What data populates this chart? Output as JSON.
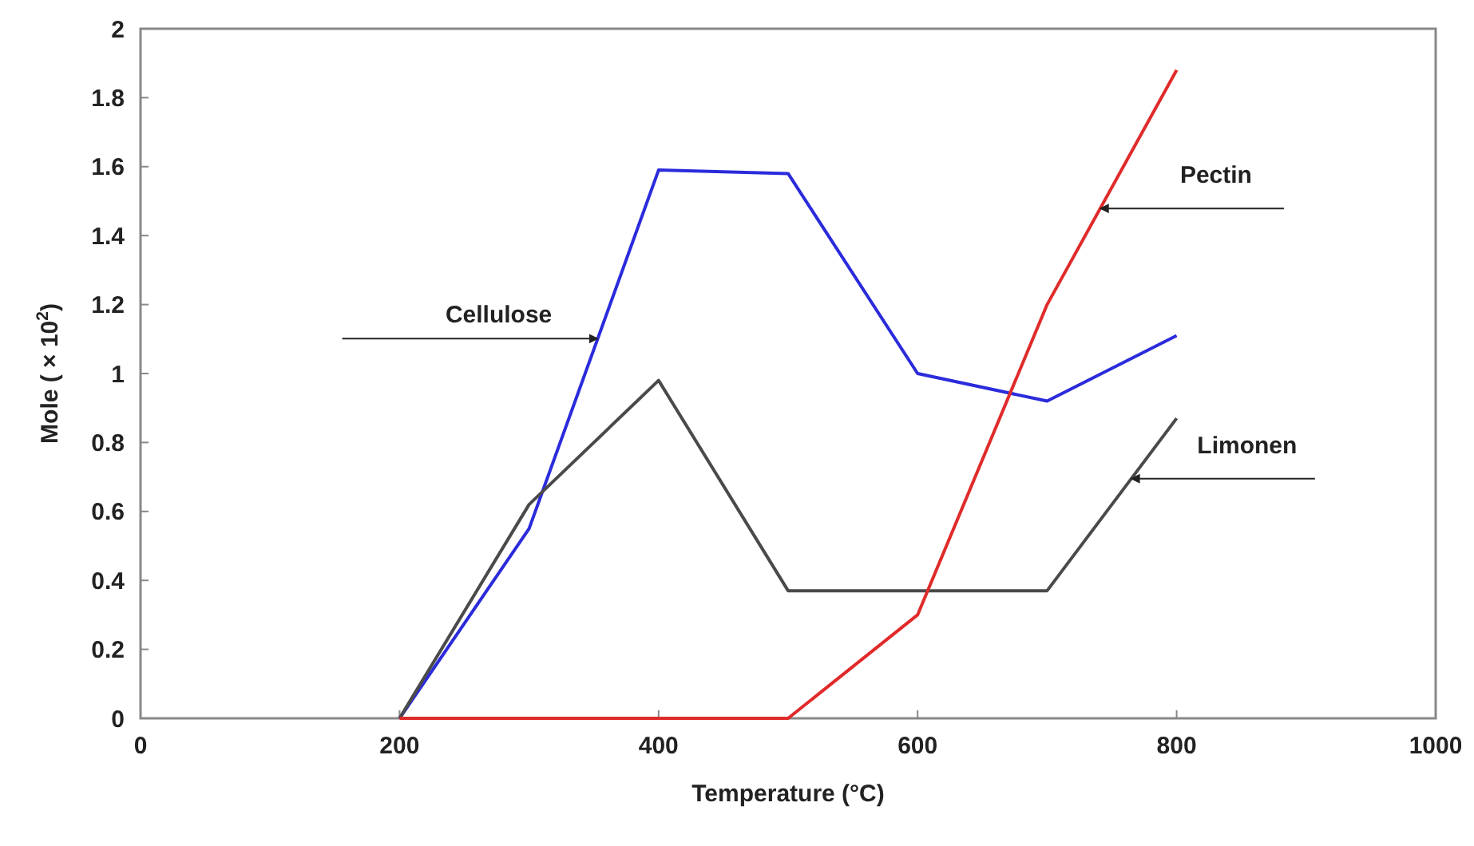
{
  "chart_data": {
    "type": "line",
    "xlabel": "Temperature (°C)",
    "ylabel": "Mole ( × 10$^{2}$)",
    "x": [
      200,
      300,
      400,
      500,
      600,
      700,
      800
    ],
    "series": [
      {
        "name": "Cellulose",
        "color": "#2b2bdc",
        "values": [
          0,
          0.55,
          1.59,
          1.58,
          1.0,
          0.92,
          1.11
        ]
      },
      {
        "name": "Limonen",
        "color": "#4a4a4a",
        "values": [
          0,
          0.62,
          0.98,
          0.37,
          0.37,
          0.37,
          0.87
        ]
      },
      {
        "name": "Pectin",
        "color": "#e02b2b",
        "values": [
          0,
          0,
          0,
          0,
          0.3,
          1.2,
          1.88
        ]
      }
    ],
    "xlim": [
      0,
      1000
    ],
    "xticks": [
      0,
      200,
      400,
      600,
      800,
      1000
    ],
    "ylim": [
      0,
      2
    ],
    "yticks": [
      0,
      0.2,
      0.4,
      0.6,
      0.8,
      1,
      1.2,
      1.4,
      1.6,
      1.8,
      2
    ],
    "grid": false,
    "marker": "none",
    "line_style": "solid"
  }
}
